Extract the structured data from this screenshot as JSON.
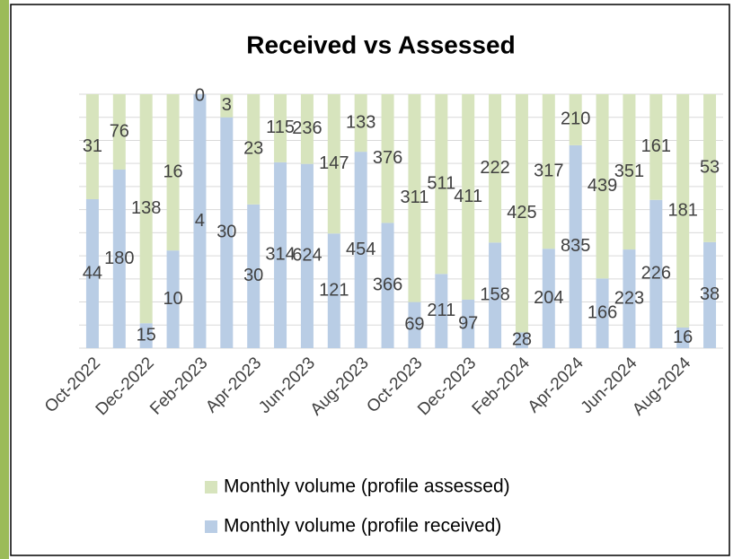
{
  "chart_data": {
    "type": "bar",
    "stacking": "percent",
    "title": "Received vs Assessed",
    "categories": [
      "Oct-2022",
      null,
      "Dec-2022",
      null,
      "Feb-2023",
      null,
      "Apr-2023",
      null,
      "Jun-2023",
      null,
      "Aug-2023",
      null,
      "Oct-2023",
      null,
      "Dec-2023",
      null,
      "Feb-2024",
      null,
      "Apr-2024",
      null,
      "Jun-2024",
      null,
      "Aug-2024",
      null
    ],
    "series": [
      {
        "name": "Monthly volume (profile received)",
        "color": "#b9cde5",
        "values": [
          44,
          180,
          15,
          10,
          4,
          30,
          30,
          314,
          624,
          121,
          454,
          366,
          69,
          211,
          97,
          158,
          28,
          204,
          835,
          166,
          223,
          226,
          16,
          38
        ]
      },
      {
        "name": "Monthly volume (profile assessed)",
        "color": "#d7e4bd",
        "values": [
          31,
          76,
          138,
          16,
          0,
          3,
          23,
          115,
          236,
          147,
          133,
          376,
          311,
          511,
          411,
          222,
          425,
          317,
          210,
          439,
          351,
          161,
          181,
          53
        ]
      }
    ],
    "grid": true
  }
}
